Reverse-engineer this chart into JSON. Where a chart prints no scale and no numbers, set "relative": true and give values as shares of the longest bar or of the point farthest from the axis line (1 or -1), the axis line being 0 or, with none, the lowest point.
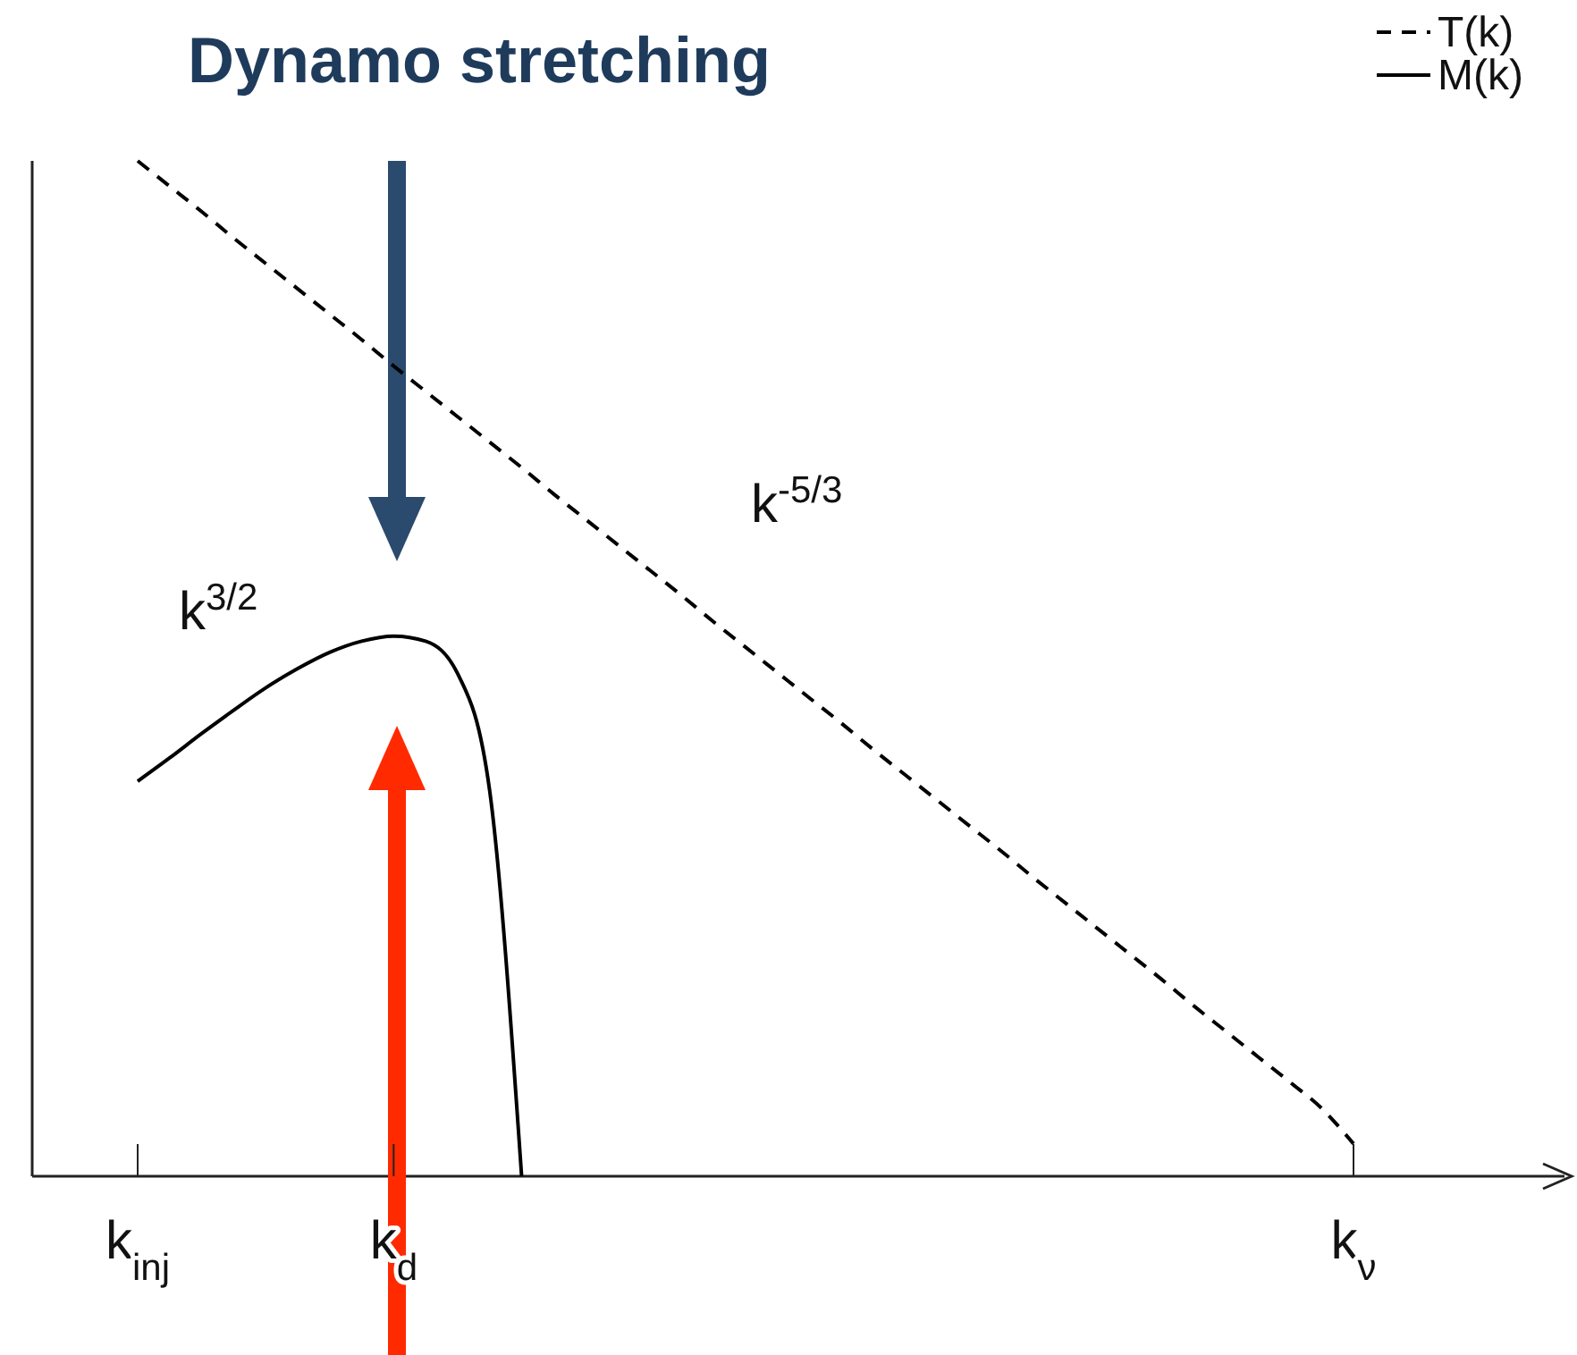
{
  "chart_data": {
    "type": "line",
    "title": "Dynamo stretching",
    "relative": true,
    "categories": [
      "k$_{inj}$",
      null,
      null,
      null,
      null,
      null,
      null,
      null,
      "k$_{d}$",
      null,
      null,
      null,
      null,
      null,
      null,
      null,
      null,
      null,
      null,
      null,
      null,
      null,
      null,
      null,
      null,
      null,
      null,
      null,
      null,
      null,
      null,
      null,
      null,
      null,
      null,
      null,
      null,
      null,
      "k$_{ν}$"
    ],
    "series": [
      {
        "name": "T(k)",
        "color": "#000000",
        "line_style": "dashed",
        "values": [
          1,
          0.975,
          0.95,
          0.924,
          0.899,
          0.874,
          0.849,
          0.824,
          0.798,
          0.773,
          0.748,
          0.723,
          0.698,
          0.672,
          0.647,
          0.622,
          0.597,
          0.572,
          0.546,
          0.521,
          0.496,
          0.471,
          0.446,
          0.42,
          0.395,
          0.37,
          0.345,
          0.32,
          0.294,
          0.269,
          0.244,
          0.219,
          0.194,
          0.168,
          0.143,
          0.118,
          0.093,
          0.067,
          0.032
        ]
      },
      {
        "name": "M(k)",
        "color": "#000000",
        "line_style": "solid",
        "values": [
          0.389,
          0.412,
          0.436,
          0.459,
          0.481,
          0.5,
          0.516,
          0.527,
          0.532,
          0.527,
          0.495,
          0.38,
          0,
          null,
          null,
          null,
          null,
          null,
          null,
          null,
          null,
          null,
          null,
          null,
          null,
          null,
          null,
          null,
          null,
          null,
          null,
          null,
          null,
          null,
          null,
          null,
          null,
          null,
          null
        ]
      }
    ],
    "annotations": [
      "k$^{-5/3}$",
      "k$^{3/2}$"
    ],
    "legend": "top right",
    "grid": false
  }
}
